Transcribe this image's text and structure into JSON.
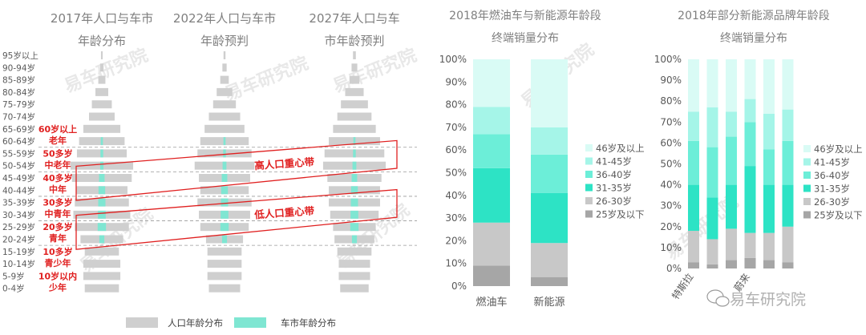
{
  "colors": {
    "population_bar": "#cfcfcf",
    "car_market_bar": "#7fe6d2",
    "annotation_red": "#e02020",
    "axis_text": "#595959",
    "title_text": "#7f7f7f",
    "watermark": "#e8e8e8"
  },
  "watermark": "易车研究院",
  "footer_brand": "易车研究院",
  "chart_data": [
    {
      "type": "bar",
      "subtype": "population-pyramid-triptych",
      "age_groups": [
        "95岁以上",
        "90-94岁",
        "85-89岁",
        "80-84岁",
        "75-79岁",
        "70-74岁",
        "65-69岁",
        "60-64岁",
        "55-59岁",
        "50-54岁",
        "45-49岁",
        "40-44岁",
        "35-39岁",
        "30-34岁",
        "25-29岁",
        "20-24岁",
        "15-19岁",
        "10-14岁",
        "5-9岁",
        "0-4岁"
      ],
      "legend": [
        "人口年龄分布",
        "车市年龄分布"
      ],
      "panels": [
        {
          "title": [
            "2017年人口与车市",
            "年龄分布"
          ],
          "population": [
            0.6,
            1.2,
            2.5,
            4.5,
            7,
            9,
            13,
            16,
            17.5,
            22,
            21,
            18,
            19,
            20,
            19,
            15,
            12,
            13,
            13,
            12
          ],
          "car_market": [
            0,
            0,
            0,
            0,
            0,
            0,
            0,
            0.5,
            1,
            1.5,
            3.5,
            4.5,
            5,
            5.5,
            6,
            3,
            0,
            0,
            0,
            0
          ]
        },
        {
          "title": [
            "2022年人口与车市",
            "年龄预判"
          ],
          "population": [
            0.7,
            1.5,
            3,
            5.5,
            8,
            11,
            14,
            17,
            19,
            21,
            18,
            17,
            19,
            18,
            17,
            13,
            12,
            12,
            12,
            11
          ],
          "car_market": [
            0,
            0,
            0,
            0,
            0,
            0,
            0,
            0.5,
            1,
            2,
            3.5,
            4.5,
            5,
            5.5,
            6,
            3,
            0,
            0,
            0,
            0
          ]
        },
        {
          "title": [
            "2027年人口与车",
            "市年龄预判"
          ],
          "population": [
            1,
            2,
            3.5,
            6.5,
            9.5,
            12,
            15,
            18,
            21,
            22,
            19,
            18,
            18,
            17,
            15,
            14,
            12,
            11,
            11,
            10
          ],
          "car_market": [
            0,
            0,
            0,
            0,
            0,
            0,
            0,
            0.5,
            1,
            2,
            3.5,
            4.5,
            5,
            5.5,
            6,
            3,
            0,
            0,
            0,
            0
          ]
        }
      ],
      "annotations": [
        {
          "line1": "60岁以上",
          "line2": "老年",
          "age_group": "65-69岁"
        },
        {
          "line1": "50多岁",
          "line2": "中老年",
          "age_group": "55-59岁"
        },
        {
          "line1": "40多岁",
          "line2": "中年",
          "age_group": "45-49岁"
        },
        {
          "line1": "30多岁",
          "line2": "中青年",
          "age_group": "35-39岁"
        },
        {
          "line1": "20多岁",
          "line2": "青年",
          "age_group": "25-29岁"
        },
        {
          "line1": "10多岁",
          "line2": "青少年",
          "age_group": "15-19岁"
        },
        {
          "line1": "10岁以内",
          "line2": "少年",
          "age_group": "5-9岁"
        }
      ],
      "bands": [
        {
          "label": "高人口重心带",
          "from": "45-49岁",
          "to": "55-59岁"
        },
        {
          "label": "低人口重心带",
          "from": "25-29岁",
          "to": "35-39岁"
        }
      ]
    },
    {
      "type": "bar",
      "subtype": "stacked-percent",
      "title": [
        "2018年燃油车与新能源年龄段",
        "终端销量分布"
      ],
      "categories": [
        "燃油车",
        "新能源"
      ],
      "ytick_labels": [
        "0%",
        "10%",
        "20%",
        "30%",
        "40%",
        "50%",
        "60%",
        "70%",
        "80%",
        "90%",
        "100%"
      ],
      "ylim": [
        0,
        100
      ],
      "series": [
        {
          "name": "25岁及以下",
          "color": "#a6a6a6",
          "values": [
            9,
            4
          ]
        },
        {
          "name": "26-30岁",
          "color": "#c8c8c8",
          "values": [
            19,
            15
          ]
        },
        {
          "name": "31-35岁",
          "color": "#2de3c5",
          "values": [
            24,
            22
          ]
        },
        {
          "name": "36-40岁",
          "color": "#6ceed8",
          "values": [
            15,
            17
          ]
        },
        {
          "name": "41-45岁",
          "color": "#a5f5e8",
          "values": [
            12,
            12
          ]
        },
        {
          "name": "46岁及以上",
          "color": "#d9fbf5",
          "values": [
            21,
            30
          ]
        }
      ]
    },
    {
      "type": "bar",
      "subtype": "stacked-percent",
      "title": [
        "2018年部分新能源品牌年龄段",
        "终端销量分布"
      ],
      "categories": [
        "特斯拉",
        "",
        "",
        "",
        "",
        ""
      ],
      "category_labels_visible": [
        "特斯拉",
        "",
        "",
        "蔚来",
        "",
        ""
      ],
      "ytick_labels": [
        "0%",
        "10%",
        "20%",
        "30%",
        "40%",
        "50%",
        "60%",
        "70%",
        "80%",
        "90%",
        "100%"
      ],
      "ylim": [
        0,
        100
      ],
      "series": [
        {
          "name": "25岁及以下",
          "color": "#a6a6a6",
          "values": [
            3,
            2,
            4,
            5,
            4,
            3
          ]
        },
        {
          "name": "26-30岁",
          "color": "#c8c8c8",
          "values": [
            15,
            12,
            15,
            12,
            13,
            17
          ]
        },
        {
          "name": "31-35岁",
          "color": "#2de3c5",
          "values": [
            22,
            20,
            21,
            32,
            23,
            20
          ]
        },
        {
          "name": "36-40岁",
          "color": "#6ceed8",
          "values": [
            21,
            24,
            23,
            21,
            17,
            21
          ]
        },
        {
          "name": "41-45岁",
          "color": "#a5f5e8",
          "values": [
            14,
            19,
            12,
            11,
            17,
            15
          ]
        },
        {
          "name": "46岁及以上",
          "color": "#d9fbf5",
          "values": [
            25,
            23,
            25,
            19,
            26,
            24
          ]
        }
      ]
    }
  ]
}
